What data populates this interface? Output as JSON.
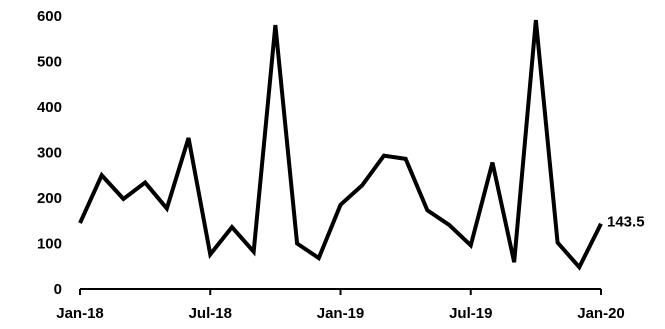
{
  "chart_data": {
    "type": "line",
    "title": "",
    "xlabel": "",
    "ylabel": "",
    "x": [
      "2018-01",
      "2018-02",
      "2018-03",
      "2018-04",
      "2018-05",
      "2018-06",
      "2018-07",
      "2018-08",
      "2018-09",
      "2018-10",
      "2018-11",
      "2018-12",
      "2019-01",
      "2019-02",
      "2019-03",
      "2019-04",
      "2019-05",
      "2019-06",
      "2019-07",
      "2019-08",
      "2019-09",
      "2019-10",
      "2019-11",
      "2019-12",
      "2020-01"
    ],
    "series": [
      {
        "values": [
          145,
          250,
          198,
          234,
          177,
          332,
          76,
          136,
          82,
          580,
          100,
          68,
          185,
          228,
          293,
          286,
          173,
          141,
          96,
          278,
          59,
          591,
          102,
          48,
          143.5
        ],
        "color": "#000000"
      }
    ],
    "ylim": [
      0,
      600
    ],
    "yticks": [
      0,
      100,
      200,
      300,
      400,
      500,
      600
    ],
    "xticks": [
      {
        "index": 0,
        "label": "Jan-18"
      },
      {
        "index": 6,
        "label": "Jul-18"
      },
      {
        "index": 12,
        "label": "Jan-19"
      },
      {
        "index": 18,
        "label": "Jul-19"
      },
      {
        "index": 24,
        "label": "Jan-20"
      }
    ],
    "end_label": "143.5",
    "grid": false,
    "legend": "none"
  }
}
